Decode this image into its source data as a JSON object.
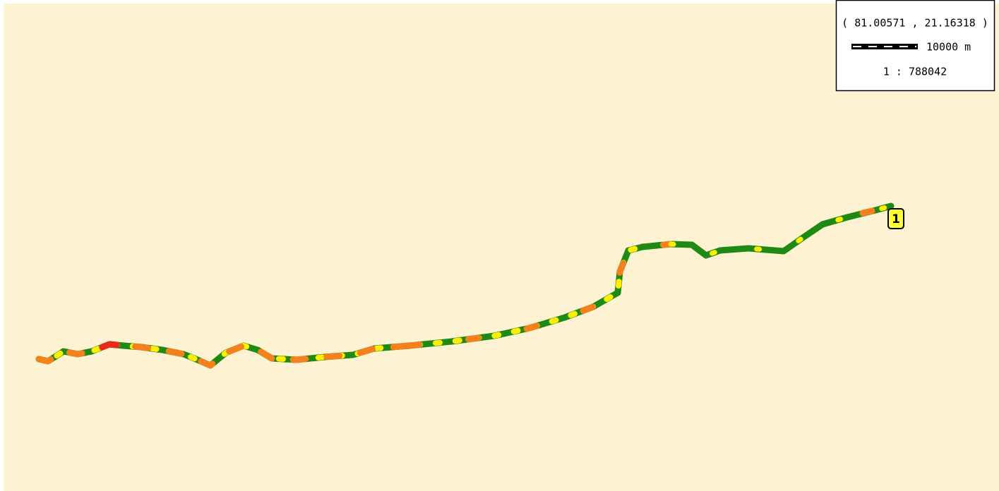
{
  "info": {
    "coordinates": "( 81.00571 , 21.16318 )",
    "scale_distance": "10000 m",
    "scale_ratio": "1 : 788042"
  },
  "markers": [
    {
      "label": "1"
    }
  ]
}
